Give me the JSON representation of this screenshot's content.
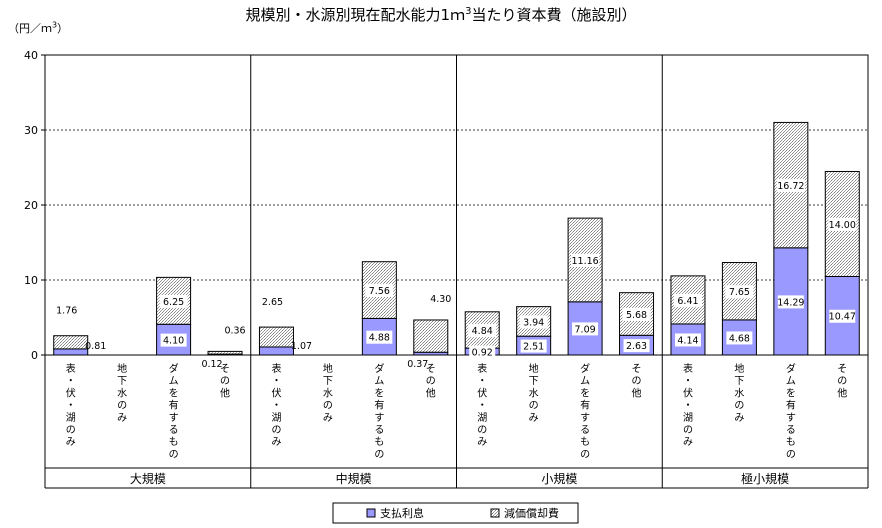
{
  "title_main": "規模別・水源別現在配水能力1ｍ",
  "title_sup": "3",
  "title_rest": "当たり資本費（施設別）",
  "unit_main": "（円／ｍ",
  "unit_sup": "3",
  "unit_close": "）",
  "colors": {
    "interest": "#9999ff",
    "depreciation_hatch": "#c0c0c0",
    "grid": "#000000"
  },
  "chart_data": {
    "type": "bar",
    "stacked": true,
    "ylim": [
      0,
      40
    ],
    "yticks": [
      "0",
      "10",
      "20",
      "30",
      "40"
    ],
    "yticks_values": [
      0,
      10,
      20,
      30,
      40
    ],
    "gridlines": [
      10,
      20,
      30,
      40
    ],
    "groups": [
      {
        "name": "大規模",
        "bars": [
          {
            "category": "表・伏・湖のみ",
            "interest": 0.81,
            "depreciation": 1.76,
            "interest_label": "0.81",
            "depreciation_label": "1.76"
          },
          {
            "category": "地下水のみ",
            "interest": 0,
            "depreciation": 0,
            "interest_label": "",
            "depreciation_label": ""
          },
          {
            "category": "ダムを有するもの",
            "interest": 4.1,
            "depreciation": 6.25,
            "interest_label": "4.10",
            "depreciation_label": "6.25"
          },
          {
            "category": "その他",
            "interest": 0.12,
            "depreciation": 0.36,
            "interest_label": "0.12",
            "depreciation_label": "0.36"
          }
        ]
      },
      {
        "name": "中規模",
        "bars": [
          {
            "category": "表・伏・湖のみ",
            "interest": 1.07,
            "depreciation": 2.65,
            "interest_label": "1.07",
            "depreciation_label": "2.65"
          },
          {
            "category": "地下水のみ",
            "interest": 0,
            "depreciation": 0,
            "interest_label": "",
            "depreciation_label": ""
          },
          {
            "category": "ダムを有するもの",
            "interest": 4.88,
            "depreciation": 7.56,
            "interest_label": "4.88",
            "depreciation_label": "7.56"
          },
          {
            "category": "その他",
            "interest": 0.37,
            "depreciation": 4.3,
            "interest_label": "0.37",
            "depreciation_label": "4.30"
          }
        ]
      },
      {
        "name": "小規模",
        "bars": [
          {
            "category": "表・伏・湖のみ",
            "interest": 0.92,
            "depreciation": 4.84,
            "interest_label": "0.92",
            "depreciation_label": "4.84"
          },
          {
            "category": "地下水のみ",
            "interest": 2.51,
            "depreciation": 3.94,
            "interest_label": "2.51",
            "depreciation_label": "3.94"
          },
          {
            "category": "ダムを有するもの",
            "interest": 7.09,
            "depreciation": 11.16,
            "interest_label": "7.09",
            "depreciation_label": "11.16"
          },
          {
            "category": "その他",
            "interest": 2.63,
            "depreciation": 5.68,
            "interest_label": "2.63",
            "depreciation_label": "5.68"
          }
        ]
      },
      {
        "name": "極小規模",
        "bars": [
          {
            "category": "表・伏・湖のみ",
            "interest": 4.14,
            "depreciation": 6.41,
            "interest_label": "4.14",
            "depreciation_label": "6.41"
          },
          {
            "category": "地下水のみ",
            "interest": 4.68,
            "depreciation": 7.65,
            "interest_label": "4.68",
            "depreciation_label": "7.65"
          },
          {
            "category": "ダムを有するもの",
            "interest": 14.29,
            "depreciation": 16.72,
            "interest_label": "14.29",
            "depreciation_label": "16.72"
          },
          {
            "category": "その他",
            "interest": 10.47,
            "depreciation": 14.0,
            "interest_label": "10.47",
            "depreciation_label": "14.00"
          }
        ]
      }
    ],
    "legend": [
      "支払利息",
      "減価償却費"
    ],
    "legend_position": "bottom-center"
  }
}
